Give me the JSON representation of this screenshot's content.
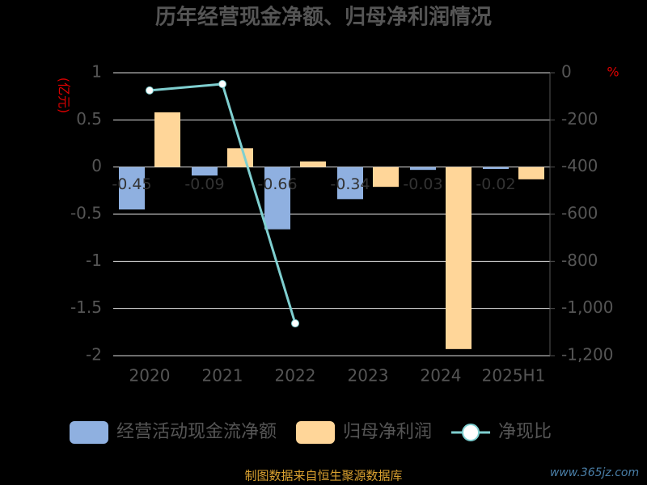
{
  "chart_data": {
    "type": "bar",
    "title": "历年经营现金净额、归母净利润情况",
    "y_label": "(亿元)",
    "y2_label": "%",
    "categories": [
      "2020",
      "2021",
      "2022",
      "2023",
      "2024",
      "2025H1"
    ],
    "series": [
      {
        "name": "经营活动现金流净额",
        "color": "#8fb0e0",
        "type": "bar",
        "values": [
          -0.45,
          -0.09,
          -0.66,
          -0.34,
          -0.03,
          -0.02
        ]
      },
      {
        "name": "归母净利润",
        "color": "#ffd699",
        "type": "bar",
        "values": [
          0.58,
          0.2,
          0.06,
          -0.21,
          -1.93,
          -0.13
        ]
      },
      {
        "name": "净现比",
        "color": "#7fcfd0",
        "type": "line",
        "axis": "y2",
        "values": [
          -75,
          -48,
          -1063,
          null,
          null,
          null
        ]
      }
    ],
    "ylim": [
      -2,
      1
    ],
    "yticks": [
      1,
      0.5,
      0,
      -0.5,
      -1,
      -1.5,
      -2
    ],
    "y2lim": [
      -1200,
      0
    ],
    "y2ticks": [
      0,
      -200,
      -400,
      -600,
      -800,
      {
        "value": -1000,
        "label": "-1,000"
      },
      {
        "value": -1200,
        "label": "-1,200"
      }
    ],
    "grid": true,
    "footer": "制图数据来自恒生聚源数据库",
    "watermark": "www.365jz.com"
  }
}
